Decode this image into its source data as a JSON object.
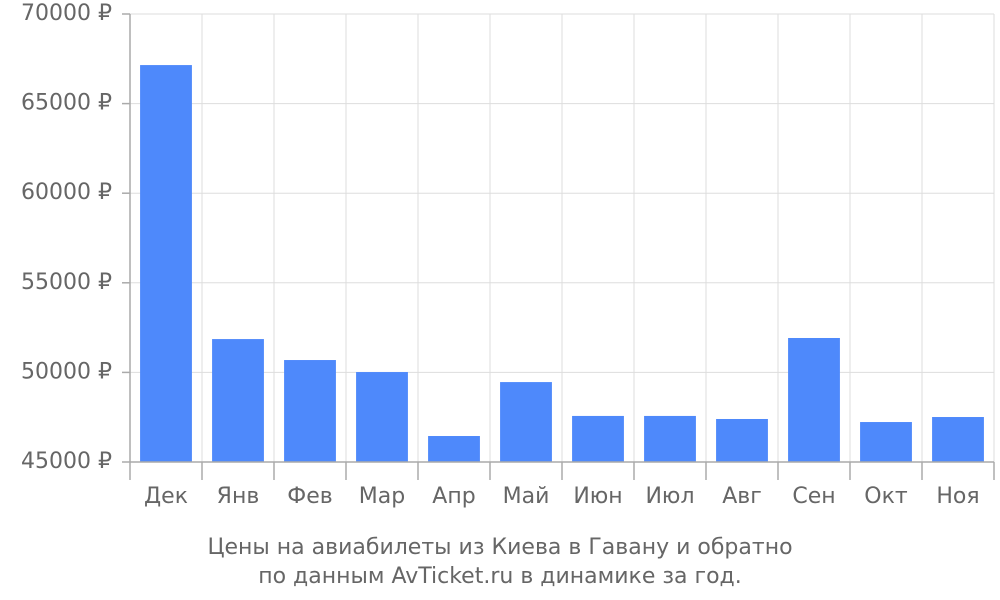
{
  "chart_data": {
    "type": "bar",
    "title": "Цены на авиабилеты из Киева в Гавану и обратно",
    "subtitle": "по данным AvTicket.ru в динамике за год.",
    "categories": [
      "Дек",
      "Янв",
      "Фев",
      "Мар",
      "Апр",
      "Май",
      "Июн",
      "Июл",
      "Авг",
      "Сен",
      "Окт",
      "Ноя"
    ],
    "values": [
      67150,
      51860,
      50690,
      50020,
      46450,
      49460,
      47570,
      47570,
      47400,
      51920,
      47230,
      47510
    ],
    "color": "#4e89fb",
    "ylim": [
      45000,
      70000
    ],
    "yticks": [
      {
        "value": 45000,
        "label": "45000 ₽"
      },
      {
        "value": 50000,
        "label": "50000 ₽"
      },
      {
        "value": 55000,
        "label": "55000 ₽"
      },
      {
        "value": 60000,
        "label": "60000 ₽"
      },
      {
        "value": 65000,
        "label": "65000 ₽"
      },
      {
        "value": 70000,
        "label": "70000 ₽"
      }
    ],
    "grid": true
  }
}
